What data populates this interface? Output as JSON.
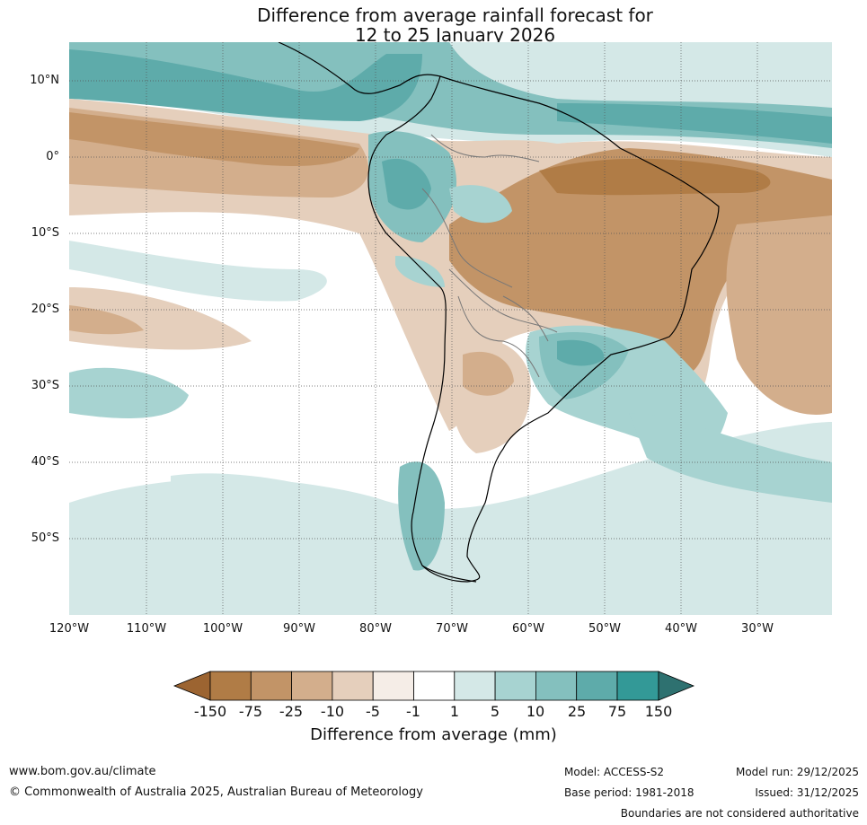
{
  "title": {
    "line1": "Difference from average rainfall forecast for",
    "line2": "12 to 25 January 2026"
  },
  "map": {
    "latitude_labels": [
      "10°N",
      "0°",
      "10°S",
      "20°S",
      "30°S",
      "40°S",
      "50°S"
    ],
    "longitude_labels": [
      "120°W",
      "110°W",
      "100°W",
      "90°W",
      "80°W",
      "70°W",
      "60°W",
      "50°W",
      "40°W",
      "30°W"
    ]
  },
  "colorbar": {
    "title": "Difference from average (mm)",
    "ticks": [
      "-150",
      "-75",
      "-25",
      "-10",
      "-5",
      "-1",
      "1",
      "5",
      "10",
      "25",
      "75",
      "150"
    ],
    "colors": {
      "extend_low": "#9c6431",
      "c1": "#b07c46",
      "c2": "#c29467",
      "c3": "#d3ae8c",
      "c4": "#e5cfbc",
      "c5": "#f5ede7",
      "c6": "#ffffff",
      "c7": "#d4e8e7",
      "c8": "#a7d3d1",
      "c9": "#84c0be",
      "c10": "#5eabaa",
      "c11": "#339997",
      "extend_high": "#2e7170"
    }
  },
  "footer": {
    "url": "www.bom.gov.au/climate",
    "copyright": "© Commonwealth of Australia 2025, Australian Bureau of Meteorology",
    "model": "Model: ACCESS-S2",
    "base_period": "Base period: 1981-2018",
    "model_run": "Model run: 29/12/2025",
    "issued": "Issued: 31/12/2025",
    "disclaimer": "Boundaries are not considered authoritative"
  }
}
